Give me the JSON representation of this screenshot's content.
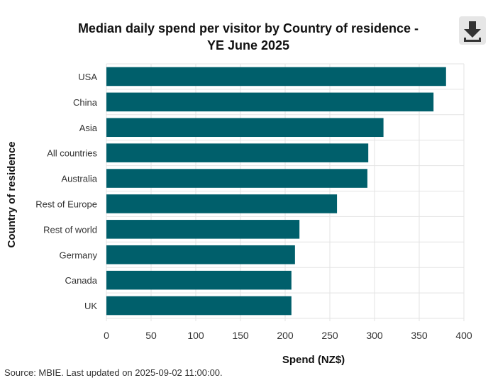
{
  "header": {
    "title_line1": "Median daily spend per visitor by Country of residence -",
    "title_line2": "YE June 2025"
  },
  "toolbar": {
    "download_icon": "download-icon"
  },
  "footer": {
    "source": "Source: MBIE. Last updated on 2025-09-02 11:00:00."
  },
  "colors": {
    "bar": "#005f6b",
    "grid": "#e3e3e3"
  },
  "chart_data": {
    "type": "bar",
    "orientation": "horizontal",
    "title": "Median daily spend per visitor by Country of residence - YE June 2025",
    "xlabel": "Spend (NZ$)",
    "ylabel": "Country of residence",
    "categories": [
      "USA",
      "China",
      "Asia",
      "All countries",
      "Australia",
      "Rest of Europe",
      "Rest of world",
      "Germany",
      "Canada",
      "UK"
    ],
    "values": [
      380,
      366,
      310,
      293,
      292,
      258,
      216,
      211,
      207,
      207
    ],
    "xlim": [
      0,
      400
    ],
    "xticks": [
      "0",
      "50",
      "100",
      "150",
      "200",
      "250",
      "300",
      "350",
      "400"
    ],
    "grid": true,
    "legend": "none"
  }
}
